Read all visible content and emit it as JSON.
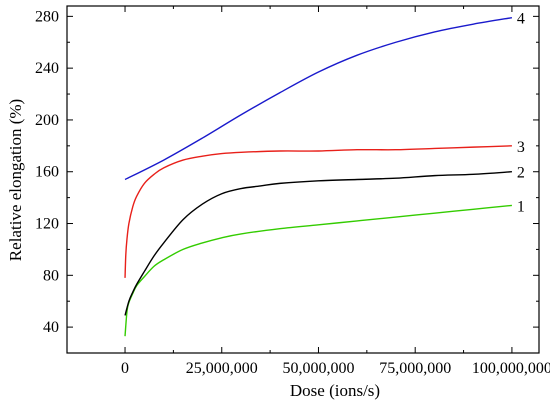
{
  "chart_data": {
    "type": "line",
    "title": "",
    "xlabel": "Dose (ions/s)",
    "ylabel": "Relative elongation (%)",
    "xlim": [
      -15000000,
      107000000
    ],
    "ylim": [
      20,
      288
    ],
    "xticks": [
      0,
      25000000,
      50000000,
      75000000,
      100000000
    ],
    "xtick_labels": [
      "0",
      "25,000,000",
      "50,000,000",
      "75,000,000",
      "100,000,000"
    ],
    "yticks": [
      40,
      80,
      120,
      160,
      200,
      240,
      280
    ],
    "ytick_labels": [
      "40",
      "80",
      "120",
      "160",
      "200",
      "240",
      "280"
    ],
    "grid": false,
    "legend": "none",
    "series": [
      {
        "name": "1",
        "color": "#33cc00",
        "x": [
          0,
          500000,
          1000000,
          2000000,
          3000000,
          5000000,
          7500000,
          10000000,
          15000000,
          20000000,
          25000000,
          30000000,
          40000000,
          50000000,
          60000000,
          70000000,
          80000000,
          90000000,
          100000000
        ],
        "y": [
          33,
          52,
          59,
          66,
          72,
          79,
          87,
          92,
          100,
          105,
          109,
          112,
          116,
          119,
          122,
          125,
          128,
          131,
          134
        ]
      },
      {
        "name": "2",
        "color": "#000000",
        "x": [
          0,
          1000000,
          2000000,
          3000000,
          5000000,
          7500000,
          10000000,
          15000000,
          20000000,
          25000000,
          30000000,
          35000000,
          40000000,
          50000000,
          60000000,
          70000000,
          80000000,
          90000000,
          100000000
        ],
        "y": [
          49,
          60,
          67,
          73,
          83,
          95,
          105,
          123,
          135,
          143,
          147,
          149,
          151,
          153,
          154,
          155,
          157,
          158,
          160
        ]
      },
      {
        "name": "3",
        "color": "#e8201a",
        "x": [
          0,
          200000,
          500000,
          1000000,
          2000000,
          3000000,
          5000000,
          7500000,
          10000000,
          15000000,
          20000000,
          25000000,
          30000000,
          40000000,
          50000000,
          60000000,
          70000000,
          80000000,
          90000000,
          100000000
        ],
        "y": [
          78,
          96,
          108,
          120,
          133,
          141,
          151,
          158,
          163,
          169,
          172,
          174,
          175,
          176,
          176,
          177,
          177,
          178,
          179,
          180
        ]
      },
      {
        "name": "4",
        "color": "#1a1acc",
        "x": [
          0,
          10000000,
          20000000,
          30000000,
          40000000,
          50000000,
          60000000,
          70000000,
          80000000,
          90000000,
          100000000
        ],
        "y": [
          154,
          169,
          186,
          204,
          221,
          237,
          250,
          260,
          268,
          274,
          279
        ]
      }
    ]
  }
}
